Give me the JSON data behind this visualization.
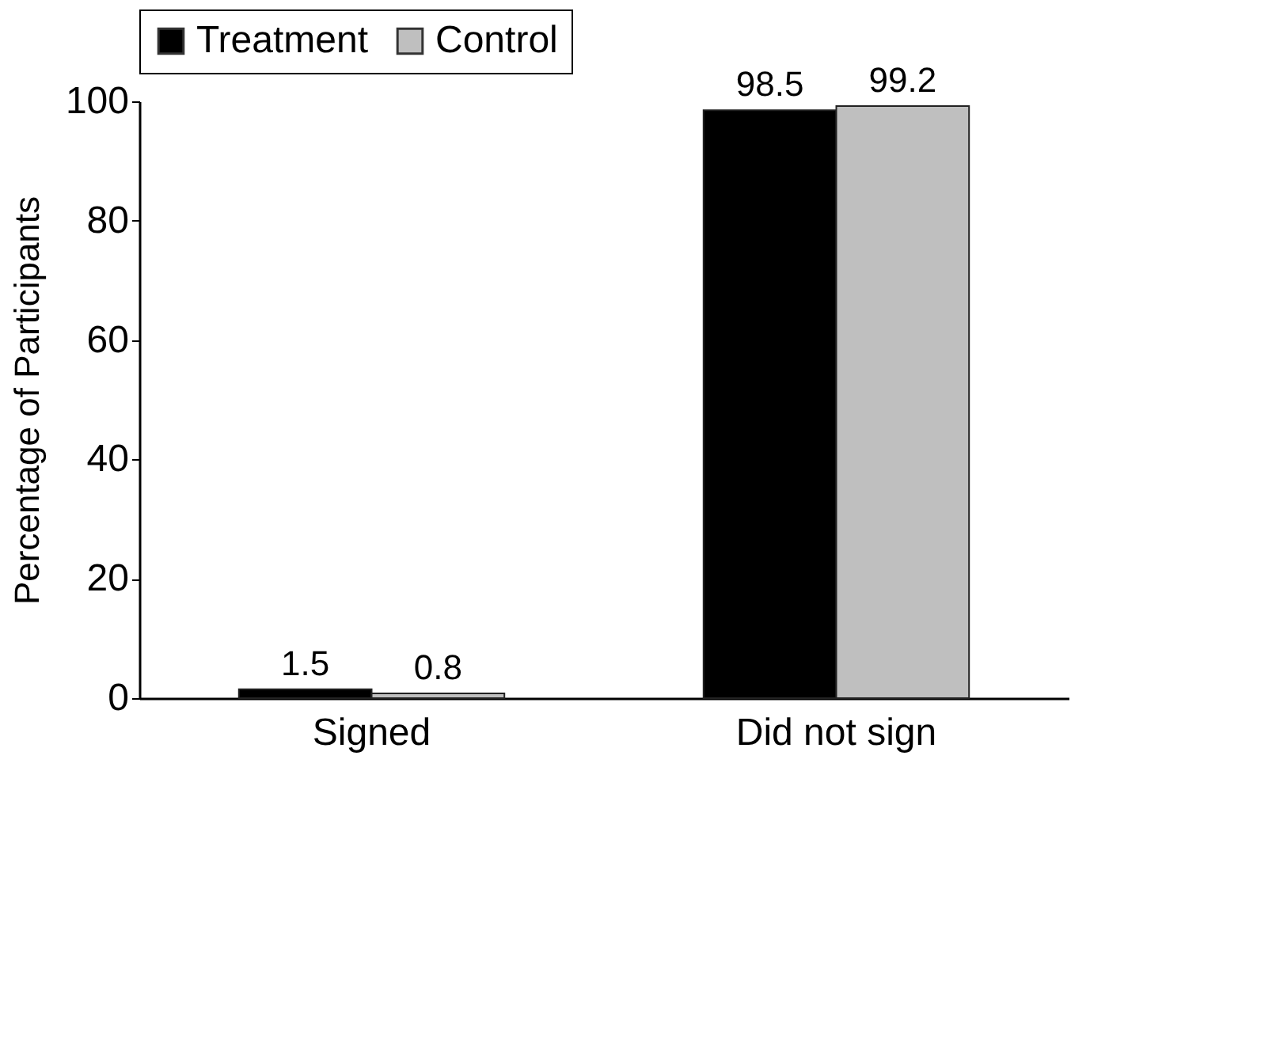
{
  "chart_data": {
    "type": "bar",
    "categories": [
      "Signed",
      "Did not sign"
    ],
    "ylabel": "Percentage of Participants",
    "series": [
      {
        "name": "Treatment",
        "color": "#000000",
        "values": [
          1.5,
          98.5
        ]
      },
      {
        "name": "Control",
        "color": "#bfbfbf",
        "values": [
          0.8,
          99.2
        ]
      }
    ],
    "ylim": [
      0,
      100
    ],
    "yticks": [
      0,
      20,
      40,
      60,
      80,
      100
    ],
    "grid": false,
    "legend": "top",
    "data_labels": true
  }
}
